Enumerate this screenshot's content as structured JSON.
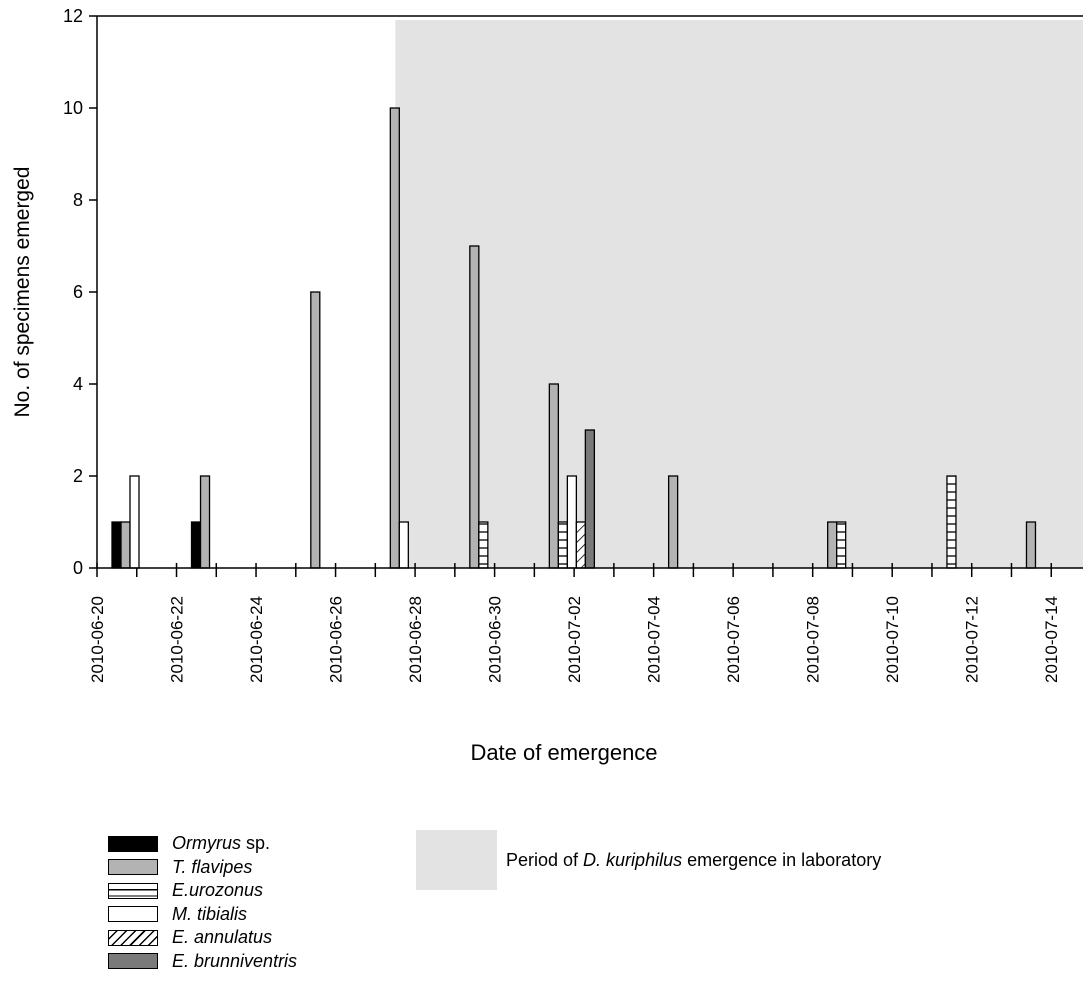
{
  "chart_data": {
    "type": "bar",
    "xlabel": "Date of emergence",
    "ylabel": "No. of specimens emerged",
    "ylim": [
      0,
      12
    ],
    "yticks": [
      "0",
      "2",
      "4",
      "6",
      "8",
      "10",
      "12"
    ],
    "xlim": [
      "2010-06-20",
      "2010-07-15"
    ],
    "xtick_labels": [
      "2010-06-20",
      "2010-06-22",
      "2010-06-24",
      "2010-06-26",
      "2010-06-28",
      "2010-06-30",
      "2010-07-02",
      "2010-07-04",
      "2010-07-06",
      "2010-07-08",
      "2010-07-10",
      "2010-07-12",
      "2010-07-14"
    ],
    "shaded_period": {
      "start": "2010-06-27",
      "end": "2010-07-15",
      "label_pre": "Period of ",
      "label_species": "D. kuriphilus",
      "label_post": " emergence in laboratory"
    },
    "series": [
      {
        "name_italic": "Ormyrus",
        "name_rest": " sp.",
        "fill": "#000000",
        "pattern": "solid",
        "points": [
          [
            "2010-06-20",
            1
          ],
          [
            "2010-06-22",
            1
          ]
        ]
      },
      {
        "name_italic": "T. flavipes",
        "name_rest": "",
        "fill": "#b3b3b3",
        "pattern": "solid",
        "points": [
          [
            "2010-06-20",
            1
          ],
          [
            "2010-06-22",
            2
          ],
          [
            "2010-06-25",
            6
          ],
          [
            "2010-06-27",
            10
          ],
          [
            "2010-06-29",
            7
          ],
          [
            "2010-07-01",
            4
          ],
          [
            "2010-07-04",
            2
          ],
          [
            "2010-07-08",
            1
          ],
          [
            "2010-07-13",
            1
          ]
        ]
      },
      {
        "name_italic": "E.urozonus",
        "name_rest": "",
        "fill": "#ffffff",
        "pattern": "hlines",
        "points": [
          [
            "2010-06-29",
            1
          ],
          [
            "2010-07-01",
            1
          ],
          [
            "2010-07-08",
            1
          ],
          [
            "2010-07-11",
            2
          ]
        ]
      },
      {
        "name_italic": "M. tibialis",
        "name_rest": "",
        "fill": "#ffffff",
        "pattern": "solid",
        "points": [
          [
            "2010-06-20",
            2
          ],
          [
            "2010-06-27",
            1
          ],
          [
            "2010-07-01",
            2
          ]
        ]
      },
      {
        "name_italic": "E. annulatus",
        "name_rest": "",
        "fill": "#ffffff",
        "pattern": "diagonal",
        "points": [
          [
            "2010-07-01",
            1
          ]
        ]
      },
      {
        "name_italic": "E. brunniventris",
        "name_rest": "",
        "fill": "#7a7a7a",
        "pattern": "solid",
        "points": [
          [
            "2010-07-01",
            3
          ]
        ]
      }
    ]
  }
}
